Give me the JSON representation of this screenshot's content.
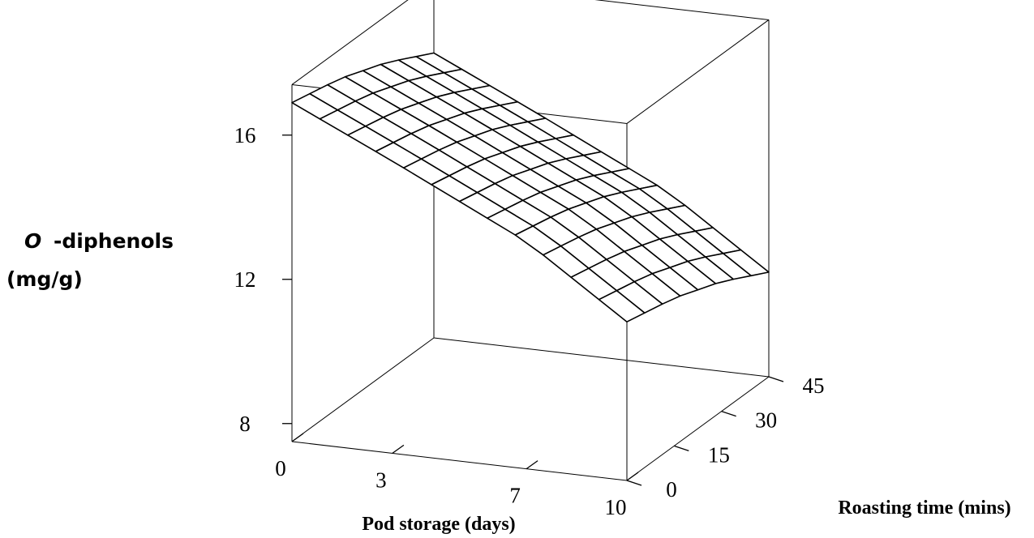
{
  "chart_data": {
    "type": "surface",
    "title": "",
    "zlabel_symbol": "O",
    "zlabel_line1": "-diphenols",
    "zlabel_line2": "(mg/g)",
    "xlabel": "Pod storage (days)",
    "ylabel": "Roasting time (mins)",
    "x_ticks": [
      "0",
      "3",
      "7",
      "10"
    ],
    "x_tick_values": [
      0,
      3,
      7,
      10
    ],
    "y_ticks": [
      "0",
      "15",
      "30",
      "45"
    ],
    "y_tick_values": [
      0,
      15,
      30,
      45
    ],
    "z_ticks": [
      "8",
      "12",
      "16"
    ],
    "z_tick_values": [
      8,
      12,
      16
    ],
    "xlim": [
      0,
      10
    ],
    "ylim": [
      0,
      45
    ],
    "zlim": [
      8,
      16
    ],
    "grid": false,
    "surface": {
      "x": [
        0,
        3,
        7,
        10
      ],
      "y": [
        0,
        15,
        30,
        45
      ],
      "z": [
        [
          16.9,
          15.6,
          13.8,
          11.9
        ],
        [
          16.6,
          15.3,
          13.5,
          11.6
        ],
        [
          16.1,
          14.8,
          13.0,
          11.1
        ],
        [
          15.4,
          14.1,
          12.3,
          10.4
        ]
      ]
    }
  }
}
